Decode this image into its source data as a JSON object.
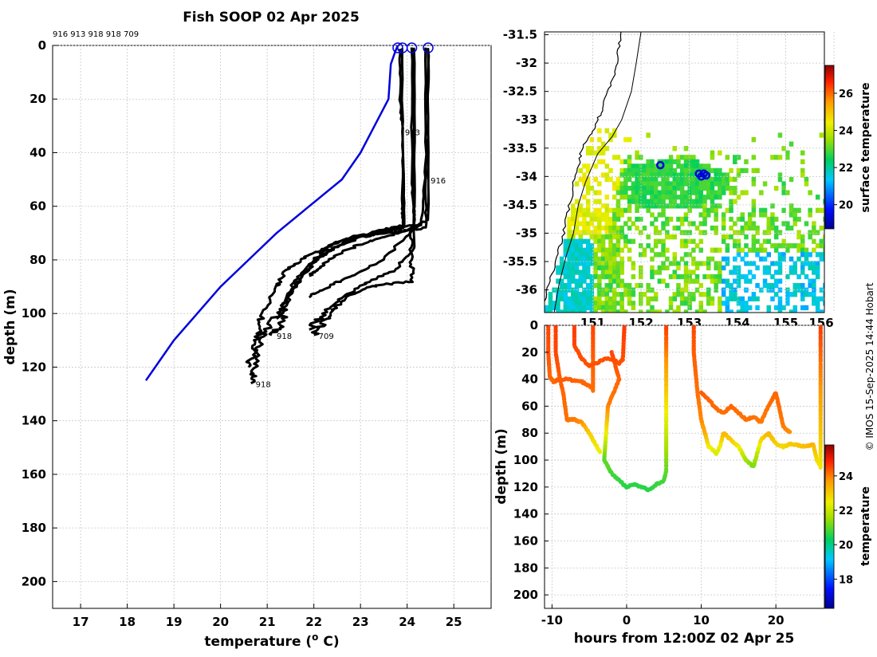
{
  "title": "Fish SOOP 02 Apr 2025",
  "profile_ids_text": "916 913 918 918 709",
  "credit": "© IMOS 15-Sep-2025 14:44 Hobart",
  "colors": {
    "surface_profile": "#0000dd",
    "profiles": "#000000",
    "marker": "#0000dd",
    "coast": "#000000"
  },
  "chart_data": [
    {
      "id": "profile",
      "type": "line",
      "xlabel": "temperature (",
      "xlabel_sup": "o",
      "xlabel_tail": " C)",
      "ylabel": "depth (m)",
      "xlim": [
        16.4,
        25.8
      ],
      "ylim": [
        210,
        0
      ],
      "xticks": [
        17,
        18,
        19,
        20,
        21,
        22,
        23,
        24,
        25
      ],
      "yticks": [
        0,
        20,
        40,
        60,
        80,
        100,
        120,
        140,
        160,
        180,
        200
      ],
      "grid": true,
      "series": [
        {
          "label": "916",
          "label_at": [
            24.4,
            50
          ],
          "points": [
            [
              24.45,
              1
            ],
            [
              24.45,
              30
            ],
            [
              24.4,
              50
            ],
            [
              24.4,
              68
            ],
            [
              24.0,
              69
            ],
            [
              23.5,
              70
            ],
            [
              23.0,
              71
            ],
            [
              22.6,
              73
            ],
            [
              22.2,
              76
            ],
            [
              21.8,
              79
            ],
            [
              21.4,
              84
            ],
            [
              21.2,
              90
            ],
            [
              20.9,
              100
            ],
            [
              20.8,
              108
            ],
            [
              20.7,
              115
            ],
            [
              20.6,
              120
            ]
          ]
        },
        {
          "label": "913",
          "label_at": [
            23.85,
            32
          ],
          "points": [
            [
              23.85,
              1
            ],
            [
              23.85,
              20
            ],
            [
              23.9,
              32
            ],
            [
              23.9,
              60
            ],
            [
              23.9,
              68
            ],
            [
              23.5,
              70
            ],
            [
              22.9,
              72
            ],
            [
              22.3,
              77
            ],
            [
              21.9,
              83
            ],
            [
              21.6,
              90
            ],
            [
              21.4,
              97
            ],
            [
              21.3,
              104
            ],
            [
              21.1,
              108
            ]
          ]
        },
        {
          "label": "918",
          "label_at": [
            21.1,
            108
          ],
          "points": [
            [
              23.9,
              1
            ],
            [
              23.9,
              40
            ],
            [
              23.95,
              67
            ],
            [
              23.4,
              69
            ],
            [
              22.7,
              73
            ],
            [
              22.1,
              79
            ],
            [
              21.7,
              87
            ],
            [
              21.4,
              95
            ],
            [
              21.2,
              101
            ],
            [
              20.9,
              108
            ],
            [
              20.75,
              115
            ],
            [
              20.7,
              122
            ],
            [
              20.65,
              126
            ]
          ]
        },
        {
          "label": "918",
          "label_at": [
            20.65,
            126
          ],
          "points": [
            [
              24.1,
              1
            ],
            [
              24.1,
              50
            ],
            [
              24.15,
              67
            ],
            [
              23.6,
              69
            ],
            [
              22.9,
              71
            ],
            [
              22.4,
              74
            ],
            [
              22.0,
              80
            ],
            [
              21.6,
              88
            ],
            [
              21.35,
              96
            ],
            [
              21.2,
              102
            ]
          ]
        },
        {
          "label": "709",
          "label_at": [
            22.0,
            108
          ],
          "points": [
            [
              24.45,
              1
            ],
            [
              24.45,
              65
            ],
            [
              24.1,
              68
            ],
            [
              24.1,
              80
            ],
            [
              24.1,
              88
            ],
            [
              23.6,
              89
            ],
            [
              23.2,
              90
            ],
            [
              22.7,
              94
            ],
            [
              22.4,
              99
            ],
            [
              22.2,
              103
            ],
            [
              22.0,
              108
            ]
          ]
        },
        {
          "label": "",
          "label_at": null,
          "points": [
            [
              24.4,
              1
            ],
            [
              24.4,
              45
            ],
            [
              24.3,
              67
            ],
            [
              23.8,
              70
            ],
            [
              23.2,
              73
            ],
            [
              22.6,
              77
            ],
            [
              22.2,
              82
            ],
            [
              21.9,
              86
            ]
          ]
        },
        {
          "label": "",
          "label_at": null,
          "points": [
            [
              24.15,
              1
            ],
            [
              24.15,
              60
            ],
            [
              24.15,
              68
            ],
            [
              23.5,
              80
            ],
            [
              22.8,
              86
            ],
            [
              22.3,
              90
            ],
            [
              21.9,
              94
            ]
          ]
        },
        {
          "label": "",
          "label_at": null,
          "points": [
            [
              24.15,
              1
            ],
            [
              24.15,
              75
            ],
            [
              23.8,
              83
            ],
            [
              23.2,
              88
            ],
            [
              22.6,
              94
            ],
            [
              22.2,
              100
            ],
            [
              21.9,
              106
            ]
          ]
        }
      ],
      "surface_series": {
        "points": [
          [
            23.8,
            0
          ],
          [
            23.75,
            2
          ],
          [
            23.65,
            7
          ],
          [
            23.6,
            20
          ],
          [
            23.3,
            30
          ],
          [
            23.0,
            40
          ],
          [
            22.6,
            50
          ],
          [
            21.9,
            60
          ],
          [
            21.2,
            70
          ],
          [
            20.6,
            80
          ],
          [
            20.0,
            90
          ],
          [
            19.5,
            100
          ],
          [
            19.0,
            110
          ],
          [
            18.6,
            120
          ],
          [
            18.4,
            125
          ]
        ]
      },
      "surface_markers": [
        23.8,
        23.9,
        24.1,
        24.45
      ]
    },
    {
      "id": "map",
      "type": "heatmap",
      "xlim": [
        150.0,
        155.8
      ],
      "ylim": [
        -36.4,
        -31.45
      ],
      "xticks": [
        151,
        152,
        153,
        154,
        155,
        156
      ],
      "xtick_labels": [
        "151",
        "152",
        "153",
        "154",
        "155",
        "156"
      ],
      "yticks": [
        -31.5,
        -32,
        -32.5,
        -33,
        -33.5,
        -34,
        -34.5,
        -35,
        -35.5,
        -36
      ],
      "ytick_labels": [
        "-31.5",
        "-32",
        "-32.5",
        "-33",
        "-33.5",
        "-34",
        "-34.5",
        "-35",
        "-35.5",
        "-36"
      ],
      "grid": true,
      "colorbar": {
        "label": "surface temperature",
        "range": [
          18.7,
          27.5
        ],
        "ticks": [
          20,
          22,
          24,
          26
        ]
      },
      "coastline": [
        [
          151.6,
          -31.45
        ],
        [
          151.55,
          -31.7
        ],
        [
          151.5,
          -32.0
        ],
        [
          151.45,
          -32.25
        ],
        [
          151.3,
          -32.5
        ],
        [
          151.2,
          -32.8
        ],
        [
          151.1,
          -33.0
        ],
        [
          151.0,
          -33.2
        ],
        [
          150.85,
          -33.4
        ],
        [
          150.75,
          -33.6
        ],
        [
          150.7,
          -33.8
        ],
        [
          150.6,
          -34.1
        ],
        [
          150.55,
          -34.4
        ],
        [
          150.45,
          -34.7
        ],
        [
          150.4,
          -35.0
        ],
        [
          150.3,
          -35.3
        ],
        [
          150.2,
          -35.6
        ],
        [
          150.1,
          -35.9
        ],
        [
          150.0,
          -36.2
        ]
      ],
      "contour_200m": [
        [
          152.0,
          -31.45
        ],
        [
          151.9,
          -32.0
        ],
        [
          151.8,
          -32.5
        ],
        [
          151.6,
          -33.0
        ],
        [
          151.4,
          -33.3
        ],
        [
          151.1,
          -33.6
        ],
        [
          150.85,
          -34.1
        ],
        [
          150.7,
          -34.5
        ],
        [
          150.6,
          -35.0
        ],
        [
          150.45,
          -35.4
        ],
        [
          150.3,
          -35.9
        ],
        [
          150.2,
          -36.4
        ]
      ],
      "station_markers": [
        [
          152.4,
          -33.8
        ],
        [
          153.2,
          -33.95
        ],
        [
          153.25,
          -34.0
        ],
        [
          153.35,
          -33.98
        ],
        [
          153.3,
          -33.95
        ]
      ]
    },
    {
      "id": "timeseries",
      "type": "scatter",
      "xlabel": "hours from 12:00Z 02 Apr 25",
      "ylabel": "depth (m)",
      "xlim": [
        -11,
        26.5
      ],
      "ylim": [
        210,
        0
      ],
      "xticks": [
        -10,
        0,
        10,
        20
      ],
      "yticks": [
        0,
        20,
        40,
        60,
        80,
        100,
        120,
        140,
        160,
        180,
        200
      ],
      "grid": true,
      "colorbar": {
        "label": "temperature",
        "range": [
          16.3,
          25.8
        ],
        "ticks": [
          18,
          20,
          22,
          24
        ]
      },
      "series": [
        {
          "points": [
            [
              -10.5,
              0,
              24.5
            ],
            [
              -10.5,
              20,
              24.4
            ],
            [
              -10.3,
              38,
              24.2
            ],
            [
              -9.8,
              42,
              24.2
            ],
            [
              -9,
              40,
              24.3
            ],
            [
              -8,
              40,
              24.3
            ],
            [
              -6,
              42,
              24.2
            ],
            [
              -5,
              45,
              24.2
            ],
            [
              -4.5,
              48,
              24.1
            ],
            [
              -4.5,
              20,
              24.3
            ],
            [
              -4.5,
              0,
              24.5
            ]
          ]
        },
        {
          "points": [
            [
              -9.5,
              0,
              24.6
            ],
            [
              -9.5,
              20,
              24.5
            ],
            [
              -9,
              38,
              24.3
            ],
            [
              -8.5,
              50,
              24.2
            ],
            [
              -8,
              70,
              24.1
            ],
            [
              -7,
              70,
              24.0
            ],
            [
              -6,
              72,
              23.8
            ],
            [
              -5,
              80,
              23.0
            ],
            [
              -4,
              90,
              22.6
            ],
            [
              -3.5,
              95,
              22.4
            ]
          ]
        },
        {
          "points": [
            [
              -7,
              0,
              24.6
            ],
            [
              -7,
              15,
              24.5
            ],
            [
              -6,
              25,
              24.4
            ],
            [
              -5,
              30,
              24.4
            ],
            [
              -4,
              28,
              24.4
            ],
            [
              -3,
              25,
              24.4
            ],
            [
              -2,
              25,
              24.4
            ],
            [
              -1,
              28,
              24.4
            ],
            [
              -0.5,
              25,
              24.4
            ],
            [
              -0.3,
              0,
              24.6
            ]
          ]
        },
        {
          "points": [
            [
              -2,
              20,
              24.5
            ],
            [
              -1.5,
              30,
              24.4
            ],
            [
              -1,
              40,
              24.2
            ],
            [
              -2.5,
              60,
              24.0
            ],
            [
              -3,
              100,
              21.0
            ],
            [
              -2.5,
              105,
              21.0
            ],
            [
              -2,
              110,
              20.8
            ],
            [
              -1,
              115,
              20.7
            ],
            [
              0,
              120,
              20.6
            ],
            [
              1,
              118,
              20.6
            ],
            [
              2,
              120,
              20.6
            ],
            [
              3,
              122,
              20.6
            ],
            [
              4,
              118,
              20.7
            ],
            [
              5,
              115,
              20.8
            ],
            [
              5.3,
              108,
              21.0
            ],
            [
              5.3,
              0,
              24.6
            ]
          ]
        },
        {
          "points": [
            [
              9,
              0,
              24.5
            ],
            [
              9,
              20,
              24.3
            ],
            [
              9.5,
              50,
              24.1
            ],
            [
              10,
              70,
              23.9
            ],
            [
              10.5,
              80,
              23.5
            ],
            [
              11,
              90,
              22.6
            ],
            [
              12,
              95,
              22.2
            ],
            [
              12.5,
              90,
              22.4
            ],
            [
              13,
              80,
              23.3
            ],
            [
              14,
              85,
              23.0
            ],
            [
              15,
              90,
              22.6
            ],
            [
              16,
              100,
              21.6
            ],
            [
              17,
              105,
              21.2
            ],
            [
              17.5,
              95,
              21.8
            ],
            [
              18,
              85,
              22.8
            ],
            [
              19,
              80,
              23.3
            ],
            [
              20,
              88,
              23.0
            ],
            [
              21,
              90,
              22.8
            ],
            [
              22,
              88,
              23.0
            ],
            [
              24,
              90,
              23.2
            ],
            [
              25,
              88,
              23.4
            ],
            [
              25.5,
              100,
              22.8
            ],
            [
              26,
              105,
              22.6
            ],
            [
              26,
              0,
              24.6
            ]
          ]
        },
        {
          "points": [
            [
              10,
              50,
              24.3
            ],
            [
              11,
              55,
              24.2
            ],
            [
              12,
              62,
              24.2
            ],
            [
              13,
              65,
              24.1
            ],
            [
              14,
              60,
              24.2
            ],
            [
              15,
              65,
              24.1
            ],
            [
              16,
              70,
              24.1
            ],
            [
              17,
              68,
              24.1
            ],
            [
              18,
              72,
              24.0
            ],
            [
              19,
              60,
              24.1
            ],
            [
              20,
              50,
              24.2
            ],
            [
              21,
              75,
              24.0
            ],
            [
              22,
              80,
              23.8
            ]
          ]
        }
      ]
    }
  ]
}
